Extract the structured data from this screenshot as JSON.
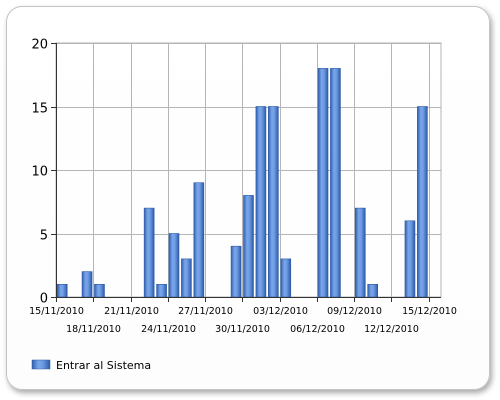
{
  "chart_data": {
    "type": "bar",
    "title": "",
    "xlabel": "",
    "ylabel": "",
    "ylim": [
      0,
      20
    ],
    "yticks": [
      0,
      5,
      10,
      15,
      20
    ],
    "grid": true,
    "legend_position": "bottom-left",
    "color": "#4f86d9",
    "x_start": "15/11/2010",
    "x_end": "16/12/2010",
    "tick_labels": [
      "15/11/2010",
      "18/11/2010",
      "21/11/2010",
      "24/11/2010",
      "27/11/2010",
      "30/11/2010",
      "03/12/2010",
      "06/12/2010",
      "09/12/2010",
      "12/12/2010",
      "15/12/2010"
    ],
    "series": [
      {
        "name": "Entrar al Sistema",
        "points": [
          {
            "date": "15/11/2010",
            "value": 1
          },
          {
            "date": "17/11/2010",
            "value": 2
          },
          {
            "date": "18/11/2010",
            "value": 1
          },
          {
            "date": "22/11/2010",
            "value": 7
          },
          {
            "date": "23/11/2010",
            "value": 1
          },
          {
            "date": "24/11/2010",
            "value": 5
          },
          {
            "date": "25/11/2010",
            "value": 3
          },
          {
            "date": "26/11/2010",
            "value": 9
          },
          {
            "date": "29/11/2010",
            "value": 4
          },
          {
            "date": "30/11/2010",
            "value": 8
          },
          {
            "date": "01/12/2010",
            "value": 15
          },
          {
            "date": "02/12/2010",
            "value": 15
          },
          {
            "date": "03/12/2010",
            "value": 3
          },
          {
            "date": "06/12/2010",
            "value": 18
          },
          {
            "date": "07/12/2010",
            "value": 18
          },
          {
            "date": "09/12/2010",
            "value": 7
          },
          {
            "date": "10/12/2010",
            "value": 1
          },
          {
            "date": "13/12/2010",
            "value": 6
          },
          {
            "date": "14/12/2010",
            "value": 15
          }
        ]
      }
    ]
  }
}
